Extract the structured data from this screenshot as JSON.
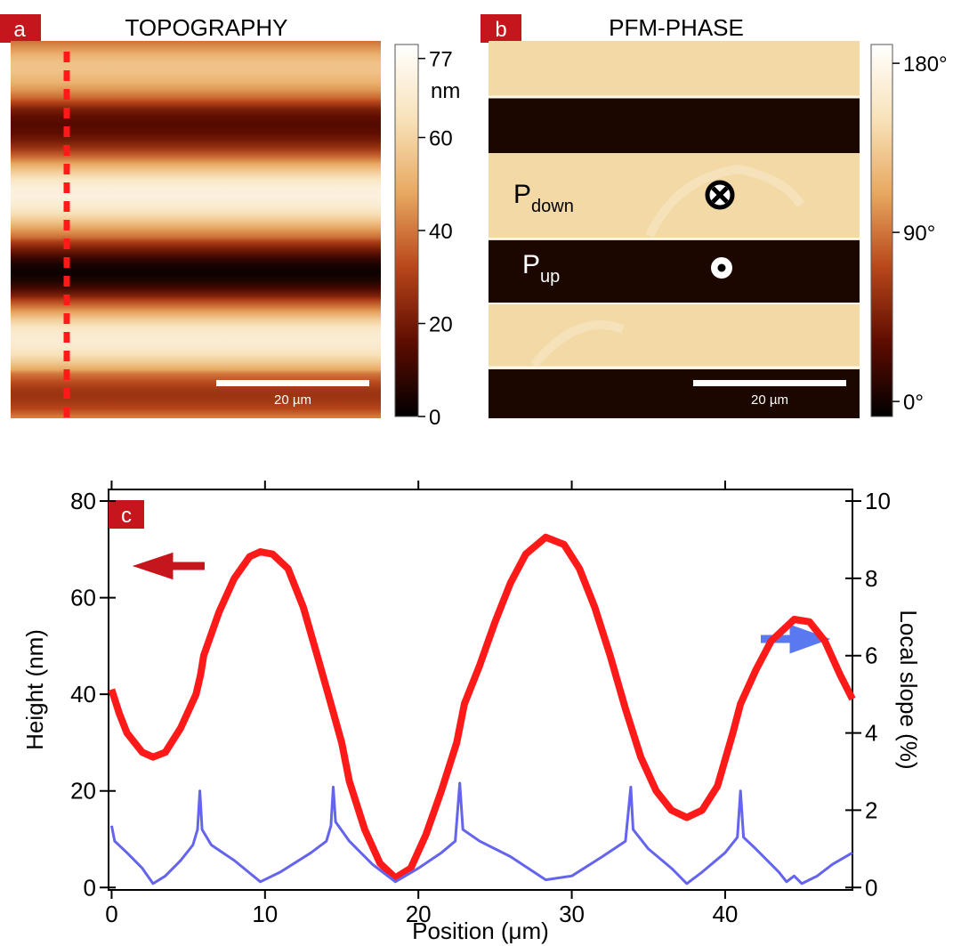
{
  "panel_a": {
    "label": "a",
    "title": "TOPOGRAPHY",
    "scale_bar": "20 µm",
    "colormap": [
      "#000000",
      "#5e0c00",
      "#b8461a",
      "#e8a860",
      "#f8e2ba",
      "#ffffff"
    ],
    "colorbar": {
      "ylim": [
        0,
        80
      ],
      "yticks": [
        0,
        20,
        40,
        60,
        77
      ],
      "unit": "nm"
    }
  },
  "panel_b": {
    "label": "b",
    "title": "PFM-PHASE",
    "scale_bar": "20 µm",
    "p_down": {
      "main": "P",
      "sub": "down"
    },
    "p_up": {
      "main": "P",
      "sub": "up"
    },
    "colorbar": {
      "ylim": [
        -8,
        190
      ],
      "yticks": [
        {
          "value": 0,
          "label": "0°"
        },
        {
          "value": 90,
          "label": "90°"
        },
        {
          "value": 180,
          "label": "180°"
        }
      ]
    }
  },
  "chart_data": {
    "type": "line",
    "label": "c",
    "x_label": "Position (μm)",
    "y_label": "Height (nm)",
    "y2_label": "Local slope (%)",
    "xlim": [
      -0.2,
      48.3
    ],
    "xticks": [
      0,
      10,
      20,
      30,
      40
    ],
    "ylim": [
      -0.5,
      82.4
    ],
    "yticks": [
      0,
      20,
      40,
      60,
      80
    ],
    "y2lim": [
      -0.0625,
      10.3
    ],
    "y2ticks": [
      0,
      2,
      4,
      6,
      8,
      10
    ],
    "series": [
      {
        "color": "#ff1a1a",
        "axis": "y",
        "x": [
          0,
          0.5,
          1,
          2,
          2.7,
          3.5,
          4.5,
          5.5,
          5.8,
          6,
          7,
          8,
          9,
          9.7,
          10.5,
          11.5,
          12.5,
          13.5,
          14.3,
          15,
          15.5,
          16.5,
          17.5,
          18.5,
          19.5,
          20.5,
          21.5,
          22.5,
          23,
          24,
          25,
          26,
          27,
          28.3,
          29.5,
          30.5,
          31.5,
          32.5,
          33.5,
          34.5,
          35.5,
          36.5,
          37.5,
          38.5,
          39.5,
          40.5,
          41,
          42,
          43,
          44.5,
          45.5,
          46.5,
          47.5,
          48.3
        ],
        "values": [
          41,
          36,
          32,
          28,
          27,
          28,
          33,
          40,
          44,
          48,
          57,
          64,
          68.5,
          69.5,
          69,
          66,
          58,
          47,
          38,
          30,
          22,
          12,
          5,
          2,
          4,
          11,
          20,
          30,
          38,
          46,
          55,
          63,
          69,
          72.5,
          71,
          66,
          58,
          48,
          37,
          27,
          20,
          16,
          14.5,
          16,
          21,
          32,
          38,
          45,
          51,
          55.5,
          55,
          51,
          44,
          39
        ]
      },
      {
        "color": "#6464ee",
        "axis": "y2",
        "x": [
          0,
          0.2,
          1,
          2,
          2.7,
          3.5,
          4.5,
          5.3,
          5.6,
          5.75,
          5.9,
          6.5,
          8,
          9.7,
          11,
          13,
          14,
          14.3,
          14.45,
          14.6,
          15.5,
          17,
          18.5,
          20,
          21.5,
          22.4,
          22.7,
          22.9,
          24,
          26,
          28.3,
          30,
          32,
          33.5,
          33.85,
          34,
          35,
          36.5,
          37.5,
          38.5,
          40,
          40.8,
          41,
          41.2,
          42,
          43.5,
          44,
          44.5,
          45,
          46,
          47,
          48.3
        ],
        "values": [
          1.6,
          1.2,
          0.9,
          0.5,
          0.1,
          0.3,
          0.7,
          1.1,
          1.5,
          2.5,
          1.5,
          1.1,
          0.7,
          0.15,
          0.4,
          0.9,
          1.2,
          1.6,
          2.6,
          1.7,
          1.2,
          0.6,
          0.15,
          0.5,
          0.9,
          1.2,
          2.7,
          1.5,
          1.2,
          0.8,
          0.2,
          0.3,
          0.8,
          1.2,
          2.6,
          1.5,
          1.0,
          0.5,
          0.1,
          0.4,
          0.9,
          1.3,
          2.5,
          1.3,
          1.0,
          0.4,
          0.15,
          0.3,
          0.1,
          0.3,
          0.6,
          0.9
        ]
      }
    ]
  }
}
